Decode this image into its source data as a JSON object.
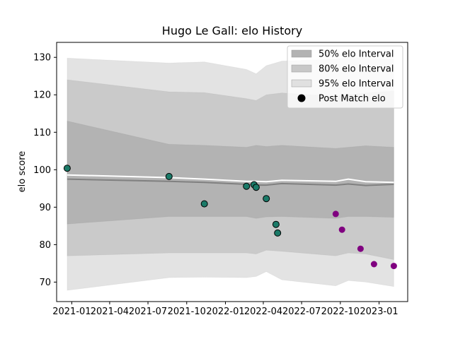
{
  "chart_data": {
    "type": "scatter",
    "title": "Hugo Le Gall: elo History",
    "xlabel": "",
    "ylabel": "elo score",
    "xlim": [
      "2020-11-26",
      "2023-03-10"
    ],
    "ylim": [
      64.8,
      134.0
    ],
    "x_ticks": [
      "2021-01",
      "2021-04",
      "2021-07",
      "2021-10",
      "2022-01",
      "2022-04",
      "2022-07",
      "2022-10",
      "2023-01"
    ],
    "y_ticks": [
      70,
      80,
      90,
      100,
      110,
      120,
      130
    ],
    "grid": false,
    "legend_position": "upper right",
    "legend": [
      {
        "label": "50% elo Interval",
        "kind": "patch",
        "color": "#b3b3b3"
      },
      {
        "label": "80% elo Interval",
        "kind": "patch",
        "color": "#c8c8c8"
      },
      {
        "label": "95% elo Interval",
        "kind": "patch",
        "color": "#e0e0e0"
      },
      {
        "label": "Post Match elo",
        "kind": "marker",
        "color": "#000000"
      }
    ],
    "bands": {
      "dates": [
        "2020-12-21",
        "2021-08-20",
        "2021-11-12",
        "2022-02-20",
        "2022-03-15",
        "2022-04-08",
        "2022-05-15",
        "2022-09-20",
        "2022-10-20",
        "2022-11-30",
        "2023-02-05"
      ],
      "p95_upper": [
        129.8,
        128.5,
        128.8,
        126.8,
        125.6,
        127.8,
        129.0,
        129.5,
        130.0,
        129.8,
        129.6
      ],
      "p80_upper": [
        124.0,
        120.8,
        120.6,
        119.0,
        118.5,
        120.0,
        120.5,
        119.6,
        120.0,
        120.5,
        121.0
      ],
      "p50_upper": [
        113.0,
        106.8,
        106.5,
        106.0,
        106.5,
        106.2,
        106.5,
        105.7,
        106.0,
        106.4,
        106.0
      ],
      "p50_lower": [
        85.5,
        87.5,
        87.5,
        87.5,
        87.0,
        87.4,
        87.5,
        87.0,
        87.5,
        87.5,
        87.3
      ],
      "p80_lower": [
        77.0,
        77.8,
        77.8,
        77.8,
        77.5,
        78.5,
        78.2,
        77.0,
        77.8,
        77.5,
        76.0
      ],
      "p95_lower": [
        67.8,
        71.2,
        71.3,
        71.2,
        71.5,
        72.8,
        70.6,
        69.0,
        70.4,
        70.0,
        68.8
      ]
    },
    "series": [
      {
        "kind": "line",
        "color": "#808080",
        "x": [
          "2020-12-21",
          "2021-08-20",
          "2021-11-12",
          "2022-02-20",
          "2022-03-15",
          "2022-04-08",
          "2022-05-15",
          "2022-09-20",
          "2022-10-20",
          "2022-11-30",
          "2023-02-05"
        ],
        "y": [
          97.5,
          96.9,
          96.6,
          96.1,
          95.9,
          95.9,
          96.3,
          95.9,
          96.2,
          95.8,
          96.1
        ]
      },
      {
        "kind": "line",
        "color": "#ffffff",
        "x": [
          "2020-12-21",
          "2021-08-20",
          "2021-11-12",
          "2022-02-20",
          "2022-03-15",
          "2022-04-08",
          "2022-05-15",
          "2022-09-20",
          "2022-10-20",
          "2022-11-30",
          "2023-02-05"
        ],
        "y": [
          98.6,
          97.9,
          97.5,
          96.9,
          96.9,
          96.8,
          97.2,
          96.9,
          97.5,
          96.8,
          96.6
        ]
      },
      {
        "kind": "points",
        "color": "#1b7a68",
        "x": [
          "2020-12-21",
          "2021-08-20",
          "2021-11-12",
          "2022-02-20",
          "2022-03-10",
          "2022-03-15",
          "2022-04-08",
          "2022-05-01",
          "2022-05-05"
        ],
        "y": [
          100.4,
          98.2,
          90.9,
          95.6,
          96.0,
          95.3,
          92.3,
          85.4,
          83.1
        ]
      },
      {
        "kind": "points",
        "color": "#800080",
        "x": [
          "2022-09-20",
          "2022-10-05",
          "2022-11-18",
          "2022-12-20",
          "2023-02-05"
        ],
        "y": [
          88.2,
          84.0,
          78.9,
          74.8,
          74.3
        ]
      }
    ]
  }
}
